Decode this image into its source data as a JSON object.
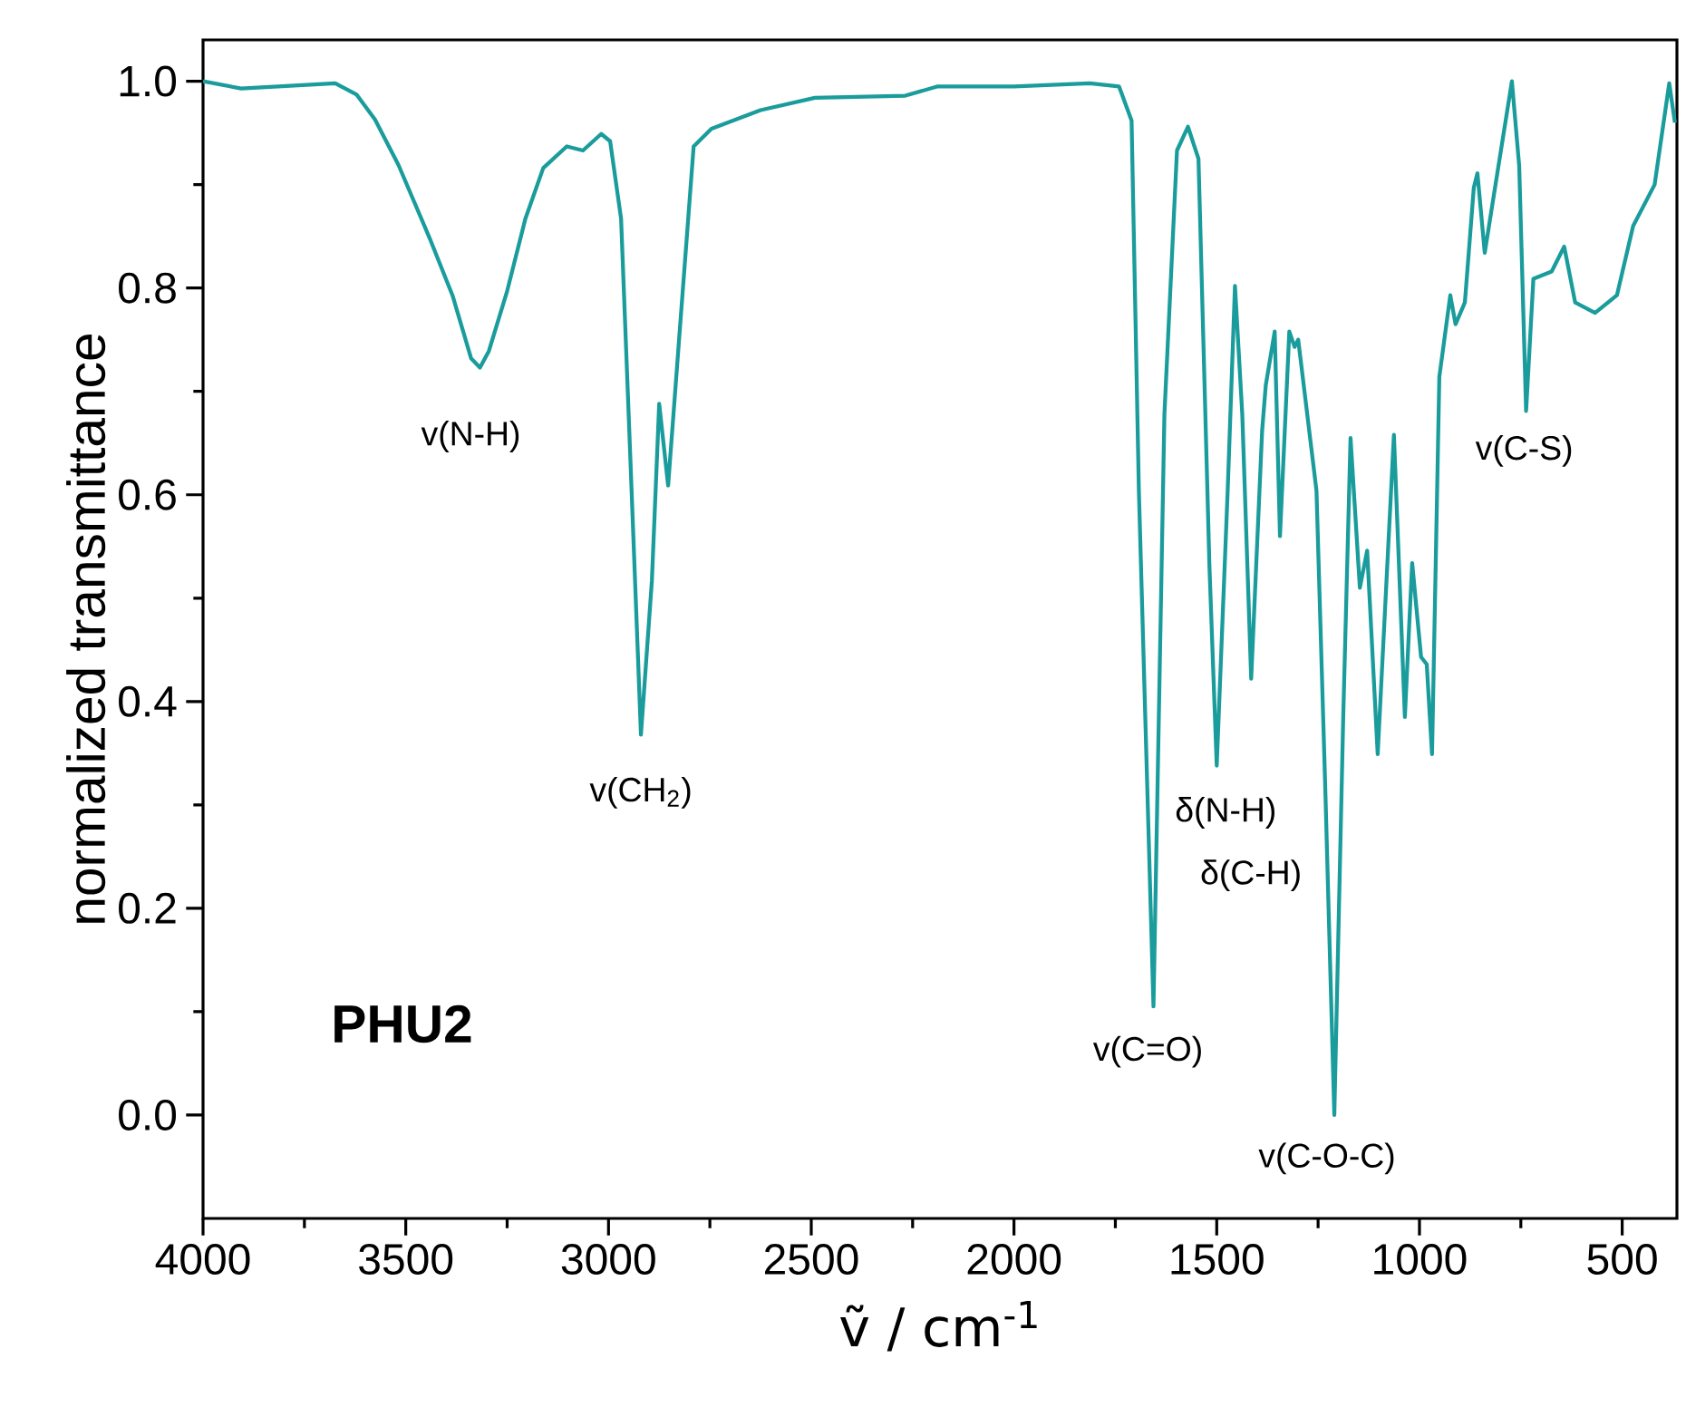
{
  "chart_data": {
    "type": "line",
    "title": "**PHU2**",
    "xlabel": "ṽ / cm$^{-1}$",
    "ylabel": "normalized transmittance",
    "color": "#1a9c9c",
    "x": [
      4000,
      3906,
      3674,
      3621,
      3576,
      3518,
      3442,
      3384,
      3339,
      3317,
      3295,
      3250,
      3205,
      3161,
      3103,
      3063,
      3018,
      2996,
      2969,
      2946,
      2920,
      2893,
      2875,
      2853,
      2826,
      2790,
      2746,
      2625,
      2491,
      2268,
      2188,
      2000,
      1813,
      1741,
      1710,
      1692,
      1656,
      1629,
      1598,
      1571,
      1545,
      1518,
      1500,
      1473,
      1455,
      1437,
      1415,
      1388,
      1379,
      1357,
      1344,
      1321,
      1308,
      1299,
      1254,
      1232,
      1210,
      1188,
      1170,
      1147,
      1129,
      1103,
      1063,
      1036,
      1018,
      996,
      982,
      969,
      951,
      924,
      911,
      888,
      866,
      857,
      839,
      808,
      772,
      754,
      737,
      719,
      674,
      643,
      616,
      567,
      513,
      473,
      420,
      384,
      370
    ],
    "values": [
      1.0,
      0.993,
      0.998,
      0.987,
      0.963,
      0.919,
      0.849,
      0.792,
      0.732,
      0.723,
      0.739,
      0.797,
      0.867,
      0.916,
      0.937,
      0.933,
      0.949,
      0.942,
      0.867,
      0.634,
      0.368,
      0.517,
      0.688,
      0.609,
      0.75,
      0.937,
      0.954,
      0.972,
      0.984,
      0.986,
      0.995,
      0.995,
      0.998,
      0.995,
      0.962,
      0.604,
      0.105,
      0.678,
      0.933,
      0.956,
      0.925,
      0.531,
      0.338,
      0.604,
      0.802,
      0.678,
      0.422,
      0.662,
      0.706,
      0.758,
      0.56,
      0.758,
      0.743,
      0.75,
      0.604,
      0.312,
      0.0,
      0.385,
      0.655,
      0.51,
      0.546,
      0.349,
      0.658,
      0.385,
      0.534,
      0.443,
      0.436,
      0.349,
      0.714,
      0.793,
      0.765,
      0.786,
      0.897,
      0.911,
      0.834,
      0.911,
      1.0,
      0.918,
      0.681,
      0.809,
      0.816,
      0.84,
      0.786,
      0.776,
      0.793,
      0.86,
      0.9,
      0.998,
      0.96
    ],
    "xlim": [
      4000,
      365
    ],
    "ylim": [
      -0.1,
      1.04
    ],
    "xticks": [
      4000,
      3500,
      3000,
      2500,
      2000,
      1500,
      1000,
      500
    ],
    "yticks": [
      {
        "value": 0,
        "label": "0.0"
      },
      {
        "value": 0.2,
        "label": "0.2"
      },
      {
        "value": 0.4,
        "label": "0.4"
      },
      {
        "value": 0.6,
        "label": "0.6"
      },
      {
        "value": 0.8,
        "label": "0.8"
      },
      {
        "value": 1,
        "label": "1.0"
      }
    ],
    "grid": false,
    "marker": "none",
    "line_style": "solid",
    "annotations": [
      {
        "text": "v(N-H)",
        "x": 3317,
        "y": 0.723
      },
      {
        "text": "v(CH$_{2}$)",
        "x": 2920,
        "y": 0.368
      },
      {
        "text": "δ(N-H)",
        "x": 1500,
        "y": 0.338
      },
      "δ(C-H)",
      {
        "text": "v(C=O)",
        "x": 1656,
        "y": 0.105
      },
      {
        "text": "v(C-O-C)",
        "x": 1210,
        "y": 0.0
      },
      {
        "text": "v(C-S)",
        "x": 737,
        "y": 0.681
      }
    ]
  }
}
